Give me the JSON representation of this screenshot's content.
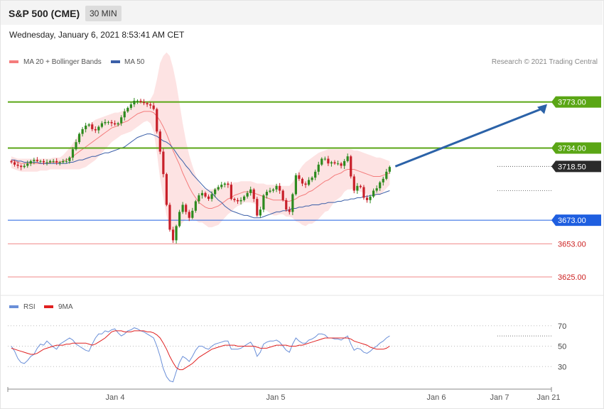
{
  "header": {
    "title": "S&P 500 (CME)",
    "timeframe": "30 MIN",
    "datetime": "Wednesday, January 6, 2021 8:53:41 AM CET"
  },
  "legend": {
    "ma20": "MA 20 + Bollinger Bands",
    "ma50": "MA 50",
    "rsi": "RSI",
    "rsi_ma": "9MA"
  },
  "credit": "Research © 2021 Trading Central",
  "colors": {
    "ma20": "#f47c7c",
    "ma50": "#3b5fa8",
    "bollinger_fill": "#fde0e0",
    "resistance": "#5aa615",
    "support": "#1f5fe0",
    "support_text": "#cc1f1f",
    "arrow": "#2b62a8",
    "rsi": "#6a8fd8",
    "rsi_ma": "#e02020",
    "candle_up": "#2d8a1e",
    "candle_down": "#c8202a"
  },
  "chart_data": {
    "type": "line",
    "ylim": [
      3610,
      3810
    ],
    "x_ticks": [
      "Jan 4",
      "Jan 5",
      "Jan 6",
      "Jan 7",
      "Jan 21"
    ],
    "levels": [
      {
        "value": 3773.0,
        "label": "3773.00",
        "kind": "resistance"
      },
      {
        "value": 3734.0,
        "label": "3734.00",
        "kind": "resistance"
      },
      {
        "value": 3718.5,
        "label": "3718.50",
        "kind": "last"
      },
      {
        "value": 3673.0,
        "label": "3673.00",
        "kind": "support"
      },
      {
        "value": 3653.0,
        "label": "3653.00",
        "kind": "support_minor"
      },
      {
        "value": 3625.0,
        "label": "3625.00",
        "kind": "support_minor"
      }
    ],
    "last_price": 3718.5,
    "target": 3773.0,
    "close": [
      3722,
      3720,
      3719,
      3718,
      3719,
      3721,
      3723,
      3724,
      3723,
      3723,
      3722,
      3722,
      3723,
      3723,
      3722,
      3722,
      3723,
      3723,
      3726,
      3733,
      3739,
      3746,
      3750,
      3753,
      3754,
      3750,
      3749,
      3752,
      3755,
      3756,
      3756,
      3755,
      3754,
      3755,
      3760,
      3765,
      3768,
      3771,
      3774,
      3774,
      3773,
      3772,
      3771,
      3770,
      3767,
      3748,
      3731,
      3712,
      3686,
      3665,
      3656,
      3668,
      3680,
      3686,
      3680,
      3675,
      3681,
      3689,
      3694,
      3696,
      3693,
      3691,
      3695,
      3699,
      3701,
      3703,
      3704,
      3703,
      3691,
      3690,
      3689,
      3690,
      3693,
      3696,
      3699,
      3691,
      3677,
      3682,
      3694,
      3697,
      3698,
      3699,
      3702,
      3698,
      3690,
      3682,
      3680,
      3695,
      3711,
      3708,
      3704,
      3703,
      3707,
      3709,
      3714,
      3720,
      3725,
      3725,
      3721,
      3722,
      3721,
      3721,
      3719,
      3723,
      3727,
      3710,
      3698,
      3702,
      3701,
      3692,
      3690,
      3693,
      3698,
      3700,
      3705,
      3708,
      3714,
      3718
    ],
    "ma20": [
      3724,
      3723,
      3722,
      3721,
      3721,
      3721,
      3721,
      3721,
      3721,
      3721,
      3721,
      3721,
      3722,
      3722,
      3722,
      3722,
      3723,
      3724,
      3725,
      3727,
      3729,
      3731,
      3733,
      3735,
      3737,
      3739,
      3741,
      3743,
      3745,
      3747,
      3749,
      3751,
      3752,
      3753,
      3755,
      3756,
      3757,
      3759,
      3761,
      3763,
      3764,
      3765,
      3765,
      3765,
      3764,
      3761,
      3757,
      3752,
      3746,
      3739,
      3732,
      3726,
      3720,
      3713,
      3707,
      3701,
      3696,
      3692,
      3688,
      3686,
      3684,
      3683,
      3683,
      3684,
      3685,
      3687,
      3689,
      3691,
      3692,
      3694,
      3695,
      3696,
      3697,
      3697,
      3697,
      3696,
      3695,
      3694,
      3693,
      3692,
      3691,
      3690,
      3690,
      3690,
      3690,
      3689,
      3689,
      3690,
      3691,
      3693,
      3694,
      3695,
      3697,
      3698,
      3700,
      3702,
      3704,
      3706,
      3707,
      3709,
      3711,
      3712,
      3713,
      3715,
      3716,
      3716,
      3716,
      3715,
      3714,
      3713,
      3712,
      3711,
      3710,
      3710,
      3710,
      3711,
      3712,
      3713
    ],
    "bb_upper": [
      3727,
      3726,
      3725,
      3725,
      3725,
      3725,
      3725,
      3725,
      3725,
      3725,
      3725,
      3725,
      3725,
      3726,
      3726,
      3726,
      3728,
      3731,
      3734,
      3738,
      3742,
      3746,
      3749,
      3752,
      3754,
      3756,
      3758,
      3759,
      3760,
      3761,
      3762,
      3763,
      3764,
      3764,
      3765,
      3766,
      3767,
      3769,
      3771,
      3772,
      3772,
      3772,
      3773,
      3775,
      3780,
      3792,
      3806,
      3812,
      3815,
      3812,
      3802,
      3789,
      3772,
      3755,
      3740,
      3728,
      3719,
      3711,
      3705,
      3701,
      3699,
      3699,
      3699,
      3700,
      3701,
      3702,
      3703,
      3704,
      3704,
      3705,
      3705,
      3706,
      3706,
      3706,
      3706,
      3705,
      3704,
      3704,
      3704,
      3703,
      3703,
      3703,
      3703,
      3702,
      3702,
      3702,
      3702,
      3705,
      3710,
      3715,
      3719,
      3722,
      3724,
      3726,
      3728,
      3730,
      3731,
      3732,
      3733,
      3733,
      3733,
      3733,
      3733,
      3733,
      3733,
      3733,
      3732,
      3732,
      3731,
      3730,
      3729,
      3728,
      3727,
      3726,
      3726,
      3725,
      3724,
      3723
    ],
    "bb_lower": [
      3717,
      3716,
      3715,
      3714,
      3714,
      3714,
      3714,
      3714,
      3714,
      3715,
      3715,
      3715,
      3716,
      3716,
      3716,
      3716,
      3716,
      3716,
      3716,
      3716,
      3716,
      3716,
      3717,
      3718,
      3720,
      3722,
      3724,
      3727,
      3730,
      3733,
      3736,
      3739,
      3741,
      3743,
      3745,
      3746,
      3747,
      3748,
      3750,
      3752,
      3754,
      3756,
      3757,
      3755,
      3748,
      3730,
      3708,
      3692,
      3677,
      3666,
      3662,
      3663,
      3668,
      3671,
      3674,
      3674,
      3673,
      3673,
      3671,
      3671,
      3669,
      3667,
      3667,
      3668,
      3669,
      3672,
      3675,
      3678,
      3680,
      3683,
      3685,
      3686,
      3688,
      3688,
      3688,
      3687,
      3686,
      3684,
      3682,
      3681,
      3679,
      3677,
      3677,
      3678,
      3678,
      3676,
      3676,
      3675,
      3672,
      3671,
      3669,
      3668,
      3670,
      3670,
      3672,
      3674,
      3677,
      3680,
      3681,
      3685,
      3689,
      3691,
      3693,
      3697,
      3699,
      3699,
      3700,
      3698,
      3697,
      3696,
      3695,
      3694,
      3693,
      3694,
      3694,
      3697,
      3700,
      3703
    ],
    "ma50": [
      3724,
      3724,
      3723,
      3723,
      3722,
      3722,
      3722,
      3722,
      3722,
      3721,
      3721,
      3721,
      3721,
      3721,
      3721,
      3721,
      3721,
      3721,
      3722,
      3722,
      3723,
      3724,
      3724,
      3725,
      3726,
      3727,
      3727,
      3728,
      3729,
      3730,
      3730,
      3731,
      3732,
      3733,
      3734,
      3735,
      3737,
      3739,
      3741,
      3743,
      3744,
      3745,
      3746,
      3746,
      3745,
      3744,
      3742,
      3740,
      3739,
      3737,
      3734,
      3730,
      3726,
      3723,
      3719,
      3716,
      3712,
      3709,
      3706,
      3703,
      3700,
      3698,
      3696,
      3693,
      3690,
      3688,
      3685,
      3683,
      3681,
      3680,
      3679,
      3678,
      3677,
      3677,
      3676,
      3675,
      3675,
      3675,
      3676,
      3677,
      3678,
      3679,
      3680,
      3680,
      3681,
      3681,
      3682,
      3683,
      3683,
      3684,
      3684,
      3685,
      3685,
      3686,
      3686,
      3686,
      3687,
      3687,
      3688,
      3688,
      3688,
      3689,
      3689,
      3690,
      3690,
      3691,
      3691,
      3692,
      3692,
      3693,
      3693,
      3694,
      3694,
      3695,
      3695,
      3696,
      3697,
      3698
    ],
    "rsi": {
      "ylim": [
        10,
        90
      ],
      "levels": [
        70,
        50,
        30
      ],
      "values": [
        50,
        45,
        38,
        34,
        33,
        36,
        40,
        42,
        48,
        52,
        51,
        55,
        52,
        49,
        47,
        52,
        54,
        56,
        58,
        56,
        52,
        50,
        48,
        46,
        45,
        52,
        58,
        62,
        62,
        65,
        64,
        66,
        67,
        63,
        60,
        62,
        65,
        66,
        68,
        67,
        65,
        64,
        62,
        60,
        58,
        50,
        40,
        28,
        20,
        16,
        15,
        25,
        34,
        40,
        38,
        35,
        40,
        46,
        50,
        50,
        48,
        47,
        50,
        52,
        53,
        54,
        55,
        55,
        47,
        47,
        47,
        48,
        50,
        52,
        54,
        49,
        40,
        44,
        52,
        54,
        55,
        55,
        56,
        54,
        50,
        46,
        44,
        52,
        58,
        55,
        53,
        53,
        56,
        57,
        59,
        62,
        62,
        61,
        58,
        58,
        57,
        57,
        56,
        58,
        60,
        52,
        46,
        48,
        47,
        44,
        43,
        45,
        48,
        50,
        53,
        55,
        58,
        60
      ],
      "ma9": [
        48,
        47,
        46,
        45,
        44,
        43,
        42,
        42,
        43,
        45,
        47,
        48,
        49,
        50,
        51,
        51,
        51,
        52,
        52,
        53,
        53,
        53,
        53,
        53,
        52,
        51,
        52,
        54,
        56,
        58,
        61,
        64,
        65,
        65,
        65,
        64,
        64,
        64,
        65,
        65,
        65,
        65,
        64,
        64,
        63,
        61,
        58,
        53,
        47,
        40,
        34,
        29,
        27,
        27,
        29,
        31,
        33,
        36,
        39,
        41,
        43,
        45,
        47,
        48,
        49,
        50,
        51,
        51,
        51,
        51,
        50,
        50,
        50,
        50,
        50,
        50,
        49,
        48,
        48,
        48,
        49,
        50,
        51,
        51,
        51,
        51,
        50,
        50,
        50,
        51,
        51,
        52,
        53,
        54,
        55,
        56,
        57,
        58,
        58,
        58,
        58,
        58,
        58,
        58,
        58,
        57,
        55,
        54,
        53,
        52,
        51,
        49,
        48,
        47,
        47,
        47,
        48,
        50
      ]
    }
  }
}
